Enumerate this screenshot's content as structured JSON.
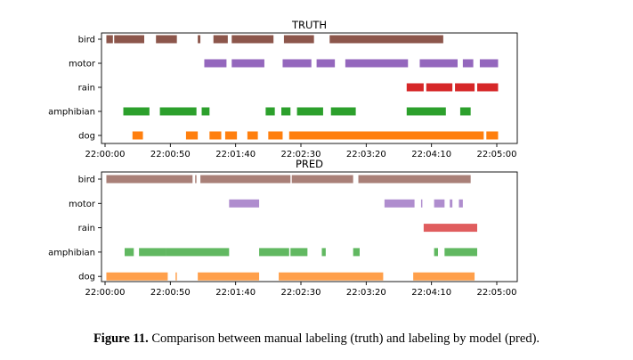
{
  "figure": {
    "caption_label": "Figure 11.",
    "caption_text": "Comparison between manual labeling (truth) and labeling by model (pred)."
  },
  "colors": {
    "bird": "#8c564b",
    "motor": "#9467bd",
    "rain": "#d62728",
    "amphibian": "#2ca02c",
    "dog": "#ff7f0e"
  },
  "chart_data": [
    {
      "type": "bar",
      "subtype": "broken-barh-timeline",
      "title": "TRUTH",
      "categories": [
        "bird",
        "motor",
        "rain",
        "amphibian",
        "dog"
      ],
      "xlim": [
        "22:00:00",
        "22:05:00"
      ],
      "x_ticks": [
        "22:00:00",
        "22:00:50",
        "22:01:40",
        "22:02:30",
        "22:03:20",
        "22:04:10",
        "22:05:00"
      ],
      "grid": false,
      "series": [
        {
          "category": "bird",
          "segments": [
            [
              1,
              6
            ],
            [
              7,
              30
            ],
            [
              39,
              55
            ],
            [
              71,
              73
            ],
            [
              83,
              94
            ],
            [
              97,
              129
            ],
            [
              137,
              160
            ],
            [
              172,
              259
            ]
          ]
        },
        {
          "category": "motor",
          "segments": [
            [
              76,
              93
            ],
            [
              97,
              122
            ],
            [
              136,
              158
            ],
            [
              162,
              176
            ],
            [
              184,
              232
            ],
            [
              241,
              270
            ],
            [
              274,
              282
            ],
            [
              287,
              301
            ]
          ]
        },
        {
          "category": "rain",
          "segments": [
            [
              231,
              244
            ],
            [
              246,
              266
            ],
            [
              268,
              283
            ],
            [
              285,
              301
            ]
          ]
        },
        {
          "category": "amphibian",
          "segments": [
            [
              14,
              34
            ],
            [
              42,
              70
            ],
            [
              74,
              80
            ],
            [
              123,
              130
            ],
            [
              135,
              142
            ],
            [
              147,
              167
            ],
            [
              173,
              192
            ],
            [
              231,
              261
            ],
            [
              272,
              280
            ]
          ]
        },
        {
          "category": "dog",
          "segments": [
            [
              21,
              29
            ],
            [
              62,
              71
            ],
            [
              80,
              89
            ],
            [
              92,
              101
            ],
            [
              109,
              117
            ],
            [
              125,
              136
            ],
            [
              141,
              290
            ],
            [
              292,
              301
            ]
          ]
        }
      ]
    },
    {
      "type": "bar",
      "subtype": "broken-barh-timeline",
      "title": "PRED",
      "categories": [
        "bird",
        "motor",
        "rain",
        "amphibian",
        "dog"
      ],
      "xlim": [
        "22:00:00",
        "22:05:00"
      ],
      "x_ticks": [
        "22:00:00",
        "22:00:50",
        "22:01:40",
        "22:02:30",
        "22:03:20",
        "22:04:10",
        "22:05:00"
      ],
      "grid": false,
      "series": [
        {
          "category": "bird",
          "segments": [
            [
              1,
              67
            ],
            [
              69,
              70
            ],
            [
              73,
              142
            ],
            [
              143,
              190
            ],
            [
              194,
              280
            ]
          ]
        },
        {
          "category": "motor",
          "segments": [
            [
              95,
              118
            ],
            [
              214,
              237
            ],
            [
              242,
              243
            ],
            [
              252,
              260
            ],
            [
              264,
              266
            ],
            [
              271,
              274
            ]
          ]
        },
        {
          "category": "rain",
          "segments": [
            [
              244,
              285
            ]
          ]
        },
        {
          "category": "amphibian",
          "segments": [
            [
              15,
              22
            ],
            [
              26,
              47
            ],
            [
              47,
              95
            ],
            [
              118,
              141
            ],
            [
              142,
              155
            ],
            [
              166,
              169
            ],
            [
              190,
              195
            ],
            [
              252,
              255
            ],
            [
              260,
              285
            ]
          ]
        },
        {
          "category": "dog",
          "segments": [
            [
              1,
              48
            ],
            [
              54,
              55
            ],
            [
              71,
              118
            ],
            [
              133,
              213
            ],
            [
              236,
              283
            ]
          ]
        }
      ]
    }
  ]
}
